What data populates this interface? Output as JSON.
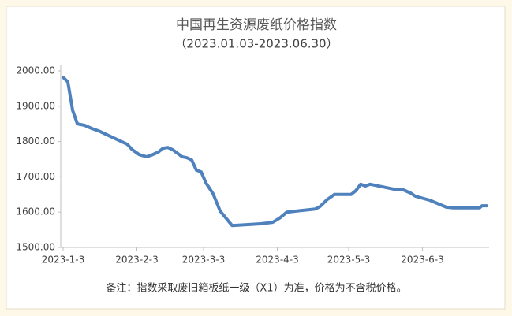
{
  "chart_data": {
    "type": "line",
    "title": "中国再生资源废纸价格指数",
    "subtitle": "（2023.01.03-2023.06.30）",
    "note": "备注：指数采取废旧箱板纸一级（X1）为准，价格为不含税价格。",
    "x": [
      "2023-01-03",
      "2023-01-05",
      "2023-01-07",
      "2023-01-09",
      "2023-01-12",
      "2023-01-15",
      "2023-01-18",
      "2023-01-30",
      "2023-02-01",
      "2023-02-04",
      "2023-02-07",
      "2023-02-09",
      "2023-02-12",
      "2023-02-14",
      "2023-02-16",
      "2023-02-18",
      "2023-02-22",
      "2023-02-24",
      "2023-02-26",
      "2023-02-28",
      "2023-03-02",
      "2023-03-04",
      "2023-03-07",
      "2023-03-10",
      "2023-03-15",
      "2023-03-27",
      "2023-04-01",
      "2023-04-04",
      "2023-04-07",
      "2023-04-19",
      "2023-04-21",
      "2023-04-24",
      "2023-04-27",
      "2023-05-04",
      "2023-05-06",
      "2023-05-08",
      "2023-05-10",
      "2023-05-12",
      "2023-05-22",
      "2023-05-26",
      "2023-05-29",
      "2023-05-31",
      "2023-06-06",
      "2023-06-13",
      "2023-06-16",
      "2023-06-21",
      "2023-06-27",
      "2023-06-28",
      "2023-06-30"
    ],
    "series": [
      {
        "color": "#4f81bd",
        "values": [
          1982,
          1969,
          1888,
          1850,
          1846,
          1837,
          1830,
          1792,
          1777,
          1763,
          1757,
          1761,
          1770,
          1781,
          1783,
          1777,
          1757,
          1754,
          1748,
          1719,
          1714,
          1683,
          1652,
          1603,
          1562,
          1567,
          1571,
          1583,
          1600,
          1609,
          1616,
          1636,
          1650,
          1650,
          1661,
          1679,
          1674,
          1679,
          1665,
          1663,
          1654,
          1645,
          1634,
          1614,
          1612,
          1612,
          1612,
          1618,
          1618
        ]
      }
    ],
    "xlim": [
      "2023-01-03",
      "2023-06-30"
    ],
    "xticks": [
      {
        "value": "2023-01-03",
        "label": "2023-1-3"
      },
      {
        "value": "2023-02-03",
        "label": "2023-2-3"
      },
      {
        "value": "2023-03-03",
        "label": "2023-3-3"
      },
      {
        "value": "2023-04-03",
        "label": "2023-4-3"
      },
      {
        "value": "2023-05-03",
        "label": "2023-5-3"
      },
      {
        "value": "2023-06-03",
        "label": "2023-6-3"
      }
    ],
    "ylim": [
      1500,
      2000
    ],
    "yticks": [
      {
        "value": 1500,
        "label": "1500.00"
      },
      {
        "value": 1600,
        "label": "1600.00"
      },
      {
        "value": 1700,
        "label": "1700.00"
      },
      {
        "value": 1800,
        "label": "1800.00"
      },
      {
        "value": 1900,
        "label": "1900.00"
      },
      {
        "value": 2000,
        "label": "2000.00"
      }
    ],
    "grid": false
  }
}
